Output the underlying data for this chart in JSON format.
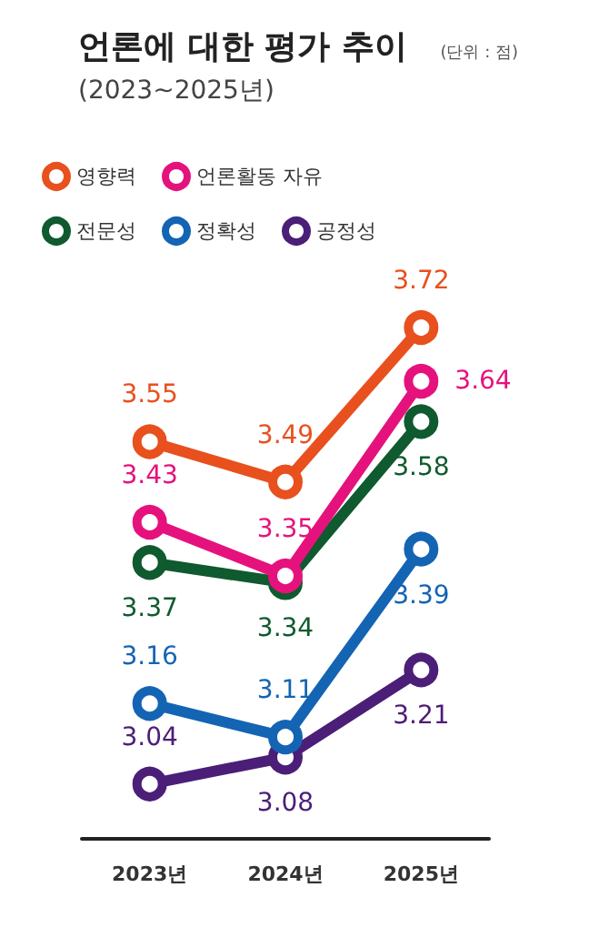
{
  "chart_data": {
    "type": "line",
    "title": "언론에 대한 평가 추이",
    "subtitle": "(2023~2025년)",
    "annotations": [
      "(단위 : 점)"
    ],
    "categories": [
      "2023년",
      "2024년",
      "2025년"
    ],
    "series": [
      {
        "name": "영향력",
        "color": "#e8501e",
        "values": [
          3.55,
          3.49,
          3.72
        ]
      },
      {
        "name": "언론활동 자유",
        "color": "#e5127d",
        "values": [
          3.43,
          3.35,
          3.64
        ]
      },
      {
        "name": "전문성",
        "color": "#0f5a2e",
        "values": [
          3.37,
          3.34,
          3.58
        ]
      },
      {
        "name": "정확성",
        "color": "#1464b4",
        "values": [
          3.16,
          3.11,
          3.39
        ]
      },
      {
        "name": "공정성",
        "color": "#4b1e78",
        "values": [
          3.04,
          3.08,
          3.21
        ]
      }
    ],
    "data_labels": true,
    "marker": "circle",
    "line_style": "solid",
    "legend": "top",
    "grid": false
  }
}
